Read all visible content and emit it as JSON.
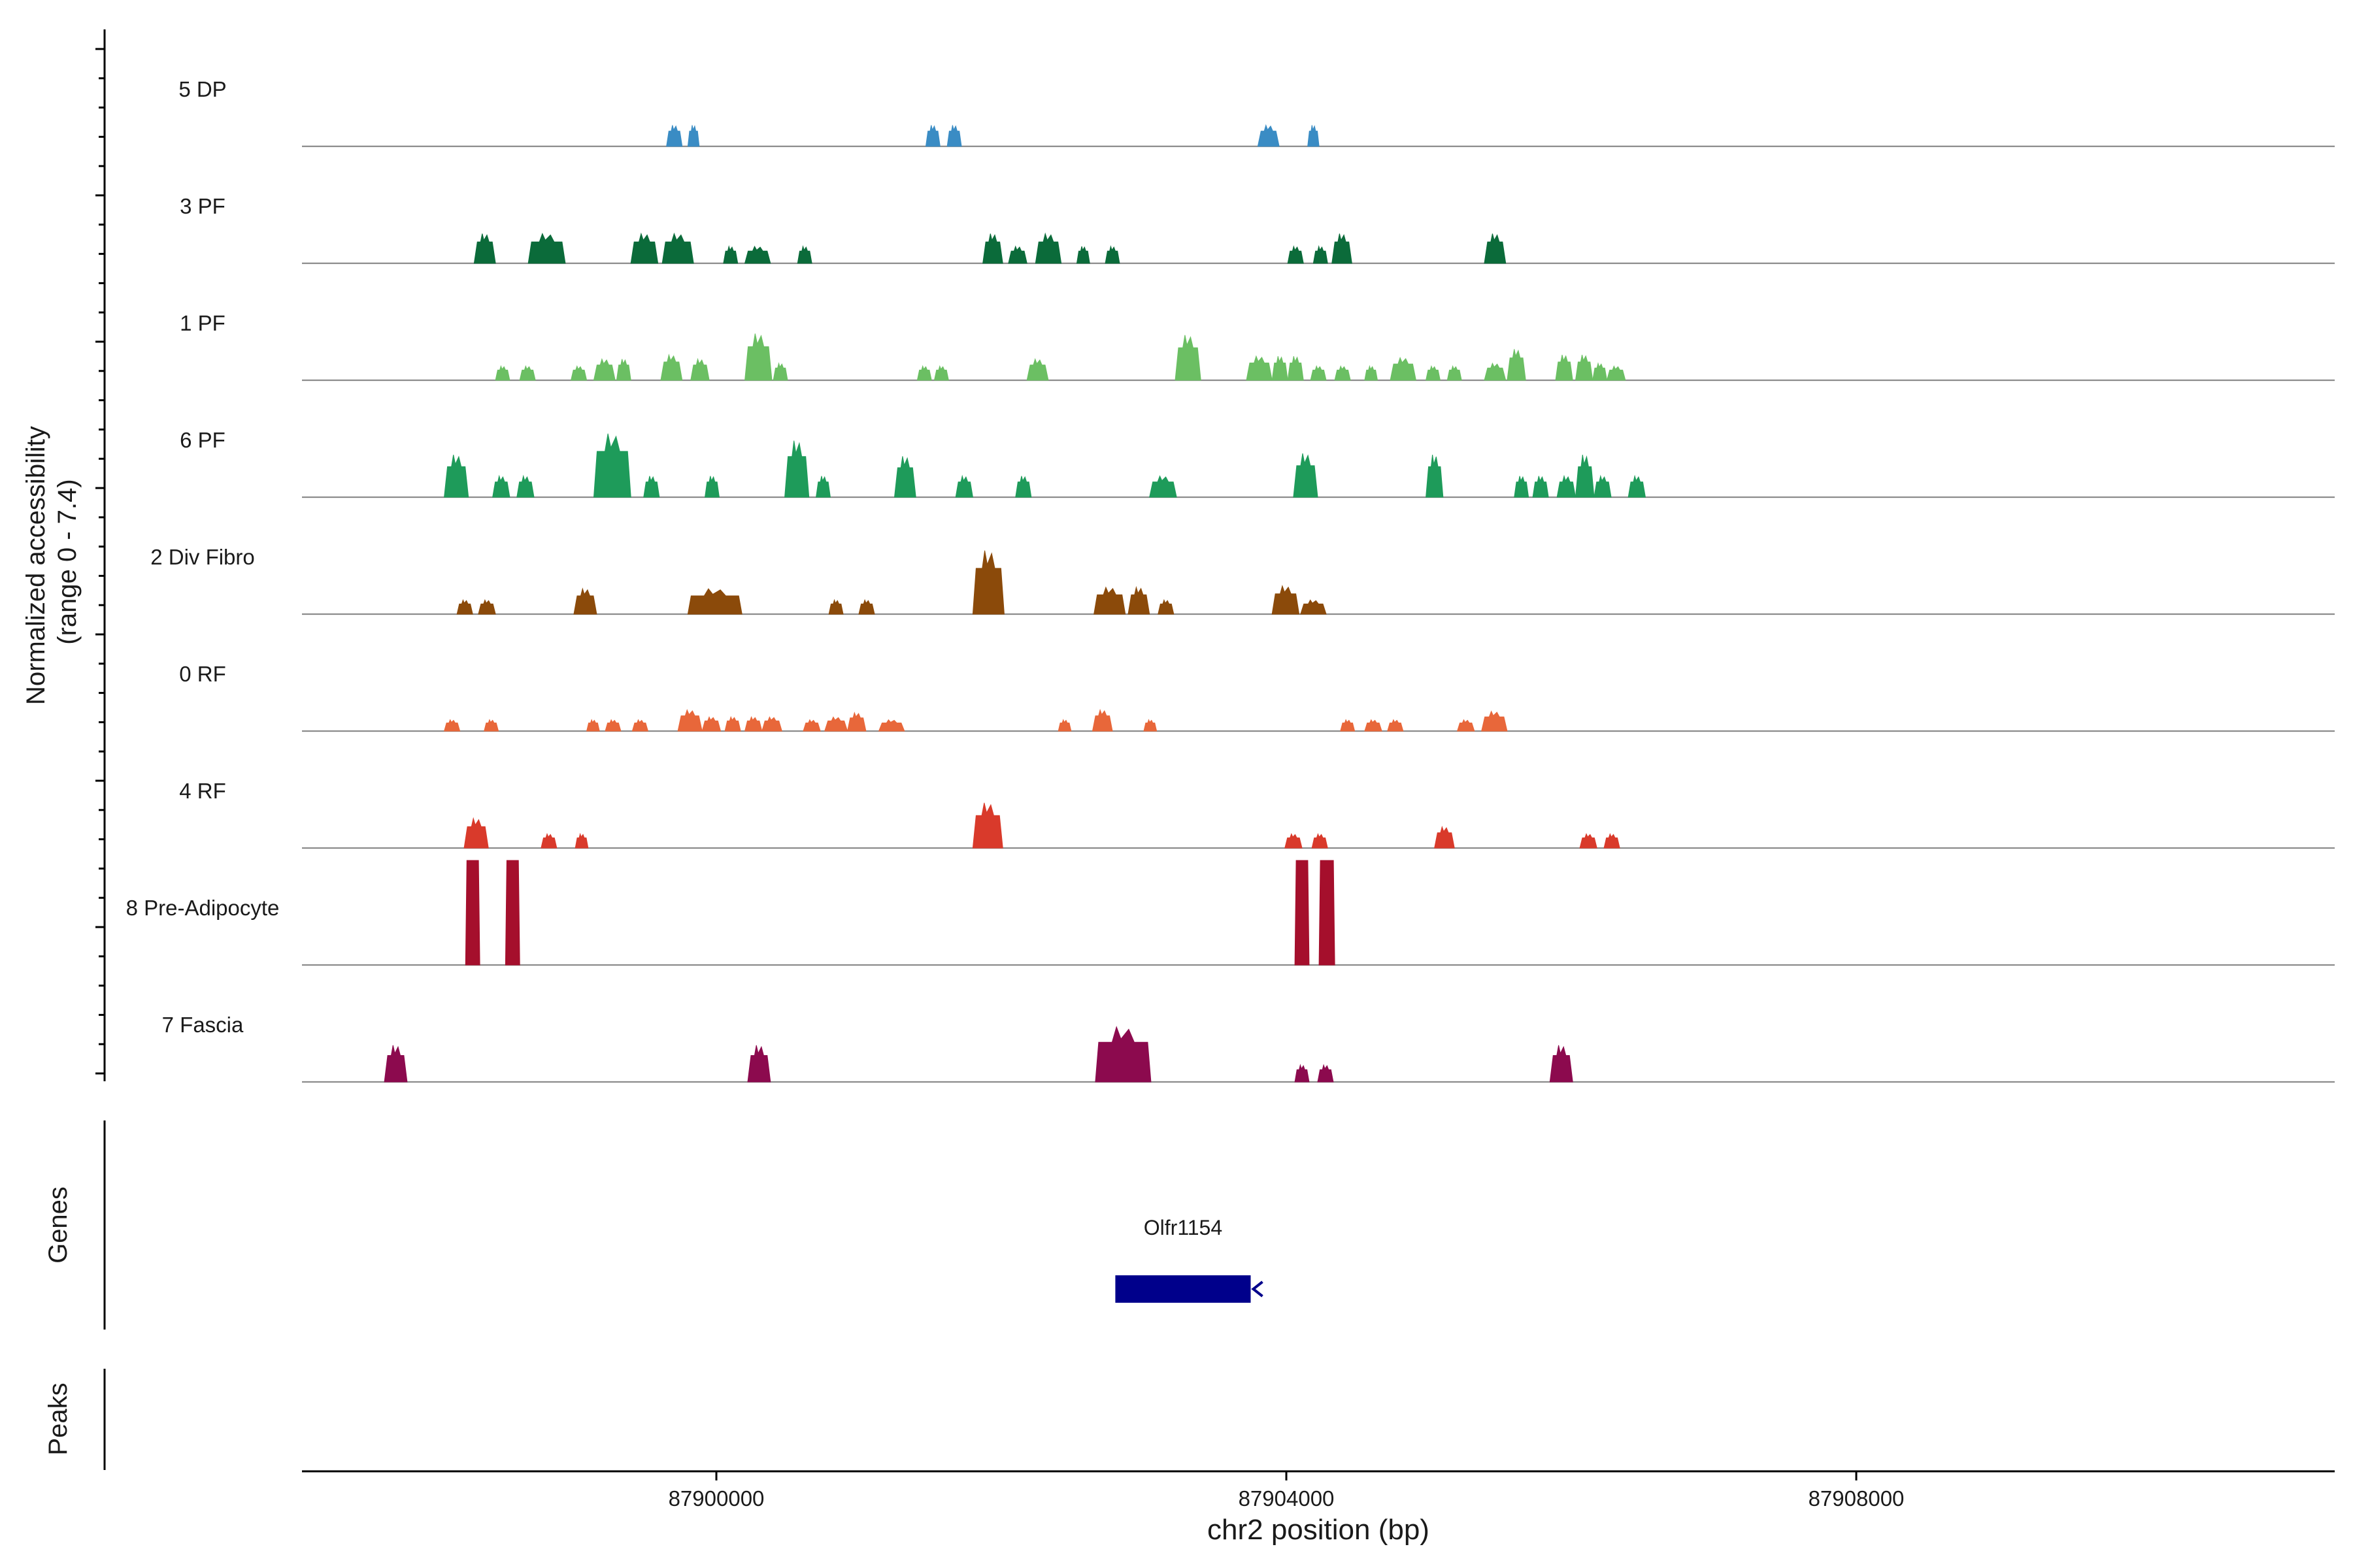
{
  "chart_data": {
    "type": "area",
    "title": "",
    "ylabel": "Normalized accessibility\n(range 0 - 7.4)",
    "ylabel_lines": [
      "Normalized accessibility",
      "(range 0 - 7.4)"
    ],
    "ylim": [
      0,
      7.4
    ],
    "xlabel": "chr2 position (bp)",
    "xlim": [
      87897000,
      87911300
    ],
    "xticks": [
      87900000,
      87904000,
      87908000
    ],
    "xtick_labels": [
      "87900000",
      "87904000",
      "87908000"
    ],
    "track_labels": {
      "genes": "Genes",
      "peaks": "Peaks"
    },
    "series": [
      {
        "name": "5 DP",
        "color": "#3A8CC4",
        "peaks": [
          [
            87899650,
            87899760,
            1.5
          ],
          [
            87899800,
            87899880,
            1.5
          ],
          [
            87901470,
            87901570,
            1.5
          ],
          [
            87901620,
            87901720,
            1.5
          ],
          [
            87903800,
            87903950,
            1.5
          ],
          [
            87904150,
            87904230,
            1.5
          ]
        ]
      },
      {
        "name": "3 PF",
        "color": "#0B6B3A",
        "peaks": [
          [
            87898300,
            87898450,
            2.1
          ],
          [
            87898680,
            87898940,
            2.1
          ],
          [
            87899400,
            87899590,
            2.1
          ],
          [
            87899620,
            87899840,
            2.1
          ],
          [
            87900050,
            87900150,
            1.2
          ],
          [
            87900200,
            87900380,
            1.2
          ],
          [
            87900570,
            87900670,
            1.2
          ],
          [
            87901870,
            87902010,
            2.1
          ],
          [
            87902050,
            87902180,
            1.2
          ],
          [
            87902240,
            87902420,
            2.1
          ],
          [
            87902530,
            87902620,
            1.2
          ],
          [
            87902730,
            87902830,
            1.2
          ],
          [
            87904010,
            87904120,
            1.2
          ],
          [
            87904190,
            87904290,
            1.2
          ],
          [
            87904320,
            87904460,
            2.1
          ],
          [
            87905390,
            87905540,
            2.1
          ]
        ]
      },
      {
        "name": "1 PF",
        "color": "#6BBF63",
        "peaks": [
          [
            87898450,
            87898550,
            1.0
          ],
          [
            87898620,
            87898730,
            1.0
          ],
          [
            87898980,
            87899090,
            1.0
          ],
          [
            87899140,
            87899290,
            1.5
          ],
          [
            87899300,
            87899400,
            1.5
          ],
          [
            87899610,
            87899760,
            1.8
          ],
          [
            87899820,
            87899950,
            1.5
          ],
          [
            87900200,
            87900390,
            3.3
          ],
          [
            87900400,
            87900500,
            1.2
          ],
          [
            87901410,
            87901510,
            1.0
          ],
          [
            87901530,
            87901630,
            1.0
          ],
          [
            87902180,
            87902330,
            1.5
          ],
          [
            87903220,
            87903400,
            3.2
          ],
          [
            87903720,
            87903900,
            1.7
          ],
          [
            87903900,
            87904010,
            1.7
          ],
          [
            87904010,
            87904120,
            1.7
          ],
          [
            87904170,
            87904280,
            1.0
          ],
          [
            87904340,
            87904450,
            1.0
          ],
          [
            87904550,
            87904640,
            1.0
          ],
          [
            87904730,
            87904910,
            1.6
          ],
          [
            87904980,
            87905080,
            1.0
          ],
          [
            87905130,
            87905230,
            1.0
          ],
          [
            87905390,
            87905540,
            1.2
          ],
          [
            87905550,
            87905680,
            2.2
          ],
          [
            87905890,
            87906010,
            1.8
          ],
          [
            87906030,
            87906150,
            1.8
          ],
          [
            87906150,
            87906250,
            1.2
          ],
          [
            87906250,
            87906380,
            1.0
          ]
        ]
      },
      {
        "name": "6 PF",
        "color": "#1E9B5A",
        "peaks": [
          [
            87898090,
            87898260,
            3.0
          ],
          [
            87898430,
            87898550,
            1.5
          ],
          [
            87898600,
            87898720,
            1.5
          ],
          [
            87899140,
            87899400,
            4.5
          ],
          [
            87899490,
            87899600,
            1.5
          ],
          [
            87899920,
            87900020,
            1.5
          ],
          [
            87900480,
            87900650,
            4.0
          ],
          [
            87900700,
            87900800,
            1.5
          ],
          [
            87901250,
            87901400,
            2.9
          ],
          [
            87901680,
            87901800,
            1.5
          ],
          [
            87902100,
            87902210,
            1.5
          ],
          [
            87903040,
            87903230,
            1.5
          ],
          [
            87904050,
            87904220,
            3.1
          ],
          [
            87904980,
            87905100,
            3.0
          ],
          [
            87905600,
            87905700,
            1.5
          ],
          [
            87905730,
            87905840,
            1.5
          ],
          [
            87905900,
            87906030,
            1.5
          ],
          [
            87906030,
            87906160,
            3.0
          ],
          [
            87906160,
            87906280,
            1.5
          ],
          [
            87906400,
            87906520,
            1.5
          ]
        ]
      },
      {
        "name": "2 Div Fibro",
        "color": "#8B4A0A",
        "peaks": [
          [
            87898180,
            87898290,
            1.0
          ],
          [
            87898330,
            87898450,
            1.0
          ],
          [
            87899000,
            87899160,
            1.8
          ],
          [
            87899800,
            87900180,
            1.8
          ],
          [
            87900790,
            87900890,
            1.0
          ],
          [
            87901000,
            87901110,
            1.0
          ],
          [
            87901800,
            87902020,
            4.5
          ],
          [
            87902650,
            87902870,
            1.9
          ],
          [
            87902890,
            87903040,
            1.9
          ],
          [
            87903100,
            87903210,
            1.0
          ],
          [
            87903900,
            87904090,
            2.0
          ],
          [
            87904100,
            87904280,
            1.0
          ]
        ]
      },
      {
        "name": "0 RF",
        "color": "#E8673A",
        "peaks": [
          [
            87898090,
            87898200,
            0.8
          ],
          [
            87898370,
            87898470,
            0.8
          ],
          [
            87899090,
            87899180,
            0.8
          ],
          [
            87899220,
            87899330,
            0.8
          ],
          [
            87899410,
            87899520,
            0.8
          ],
          [
            87899730,
            87899900,
            1.5
          ],
          [
            87899900,
            87900030,
            1.0
          ],
          [
            87900060,
            87900170,
            1.0
          ],
          [
            87900200,
            87900320,
            1.0
          ],
          [
            87900320,
            87900460,
            1.0
          ],
          [
            87900610,
            87900730,
            0.8
          ],
          [
            87900760,
            87900920,
            1.0
          ],
          [
            87900920,
            87901050,
            1.3
          ],
          [
            87901140,
            87901320,
            0.8
          ],
          [
            87902400,
            87902490,
            0.8
          ],
          [
            87902640,
            87902780,
            1.5
          ],
          [
            87903000,
            87903090,
            0.8
          ],
          [
            87904380,
            87904480,
            0.8
          ],
          [
            87904550,
            87904670,
            0.8
          ],
          [
            87904710,
            87904820,
            0.8
          ],
          [
            87905200,
            87905320,
            0.8
          ],
          [
            87905370,
            87905550,
            1.4
          ]
        ]
      },
      {
        "name": "4 RF",
        "color": "#D93A2B",
        "peaks": [
          [
            87898230,
            87898400,
            2.1
          ],
          [
            87898770,
            87898880,
            1.0
          ],
          [
            87899010,
            87899100,
            1.0
          ],
          [
            87901800,
            87902010,
            3.2
          ],
          [
            87903990,
            87904110,
            1.0
          ],
          [
            87904180,
            87904290,
            1.0
          ],
          [
            87905040,
            87905180,
            1.5
          ],
          [
            87906060,
            87906180,
            1.0
          ],
          [
            87906230,
            87906340,
            1.0
          ]
        ]
      },
      {
        "name": "8 Pre-Adipocyte",
        "color": "#A50F2C",
        "peaks": [
          [
            87898240,
            87898340,
            7.4
          ],
          [
            87898520,
            87898620,
            7.4
          ],
          [
            87904060,
            87904160,
            7.4
          ],
          [
            87904230,
            87904340,
            7.4
          ]
        ]
      },
      {
        "name": "7 Fascia",
        "color": "#8C0A4E",
        "peaks": [
          [
            87897670,
            87897830,
            2.6
          ],
          [
            87900220,
            87900380,
            2.6
          ],
          [
            87902660,
            87903050,
            3.9
          ],
          [
            87904060,
            87904160,
            1.2
          ],
          [
            87904220,
            87904330,
            1.2
          ],
          [
            87905850,
            87906010,
            2.6
          ]
        ]
      }
    ],
    "genes": [
      {
        "name": "Olfr1154",
        "start": 87902800,
        "end": 87903750,
        "strand": "-",
        "color": "#00008B"
      }
    ],
    "peaks_track": []
  }
}
